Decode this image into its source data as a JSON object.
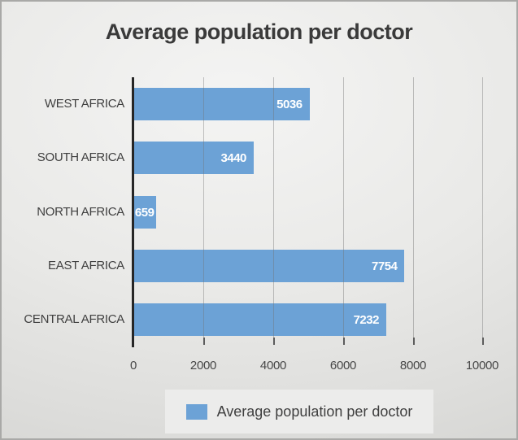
{
  "chart_data": {
    "type": "bar",
    "orientation": "horizontal",
    "title": "Average population per doctor",
    "categories": [
      "WEST AFRICA",
      "SOUTH AFRICA",
      "NORTH AFRICA",
      "EAST AFRICA",
      "CENTRAL AFRICA"
    ],
    "values": [
      5036,
      3440,
      659,
      7754,
      7232
    ],
    "x_ticks": [
      "0",
      "2000",
      "4000",
      "6000",
      "8000",
      "10000"
    ],
    "xlim": [
      0,
      10000
    ],
    "grid": "vertical",
    "legend": {
      "position": "bottom",
      "label": "Average population per doctor"
    },
    "colors": {
      "bar": "#6CA2D6",
      "value_label": "#FFFFFF",
      "title_text": "#3A3A3A",
      "axis_line": "#262626",
      "gridline": "#737373",
      "legend_background": "#ECECEB"
    }
  }
}
